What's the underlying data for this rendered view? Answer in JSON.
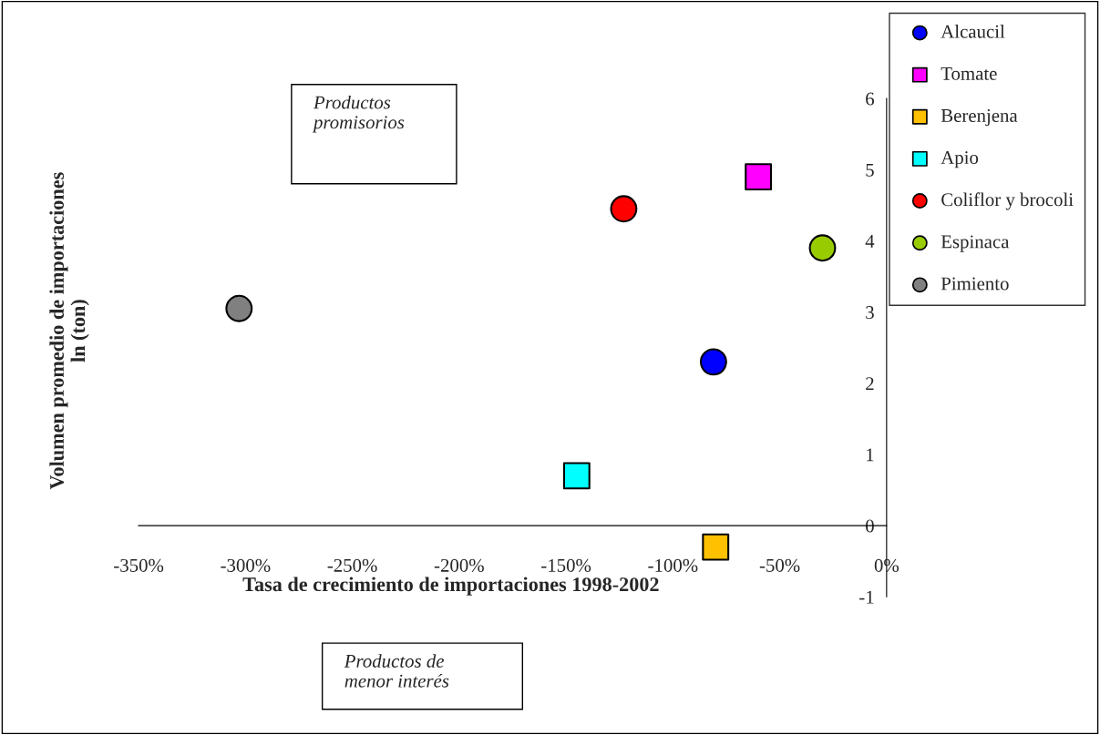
{
  "chart_data": {
    "type": "scatter",
    "xlabel": "Tasa de crecimiento de importaciones 1998-2002",
    "ylabel": "Volumen promedio de importaciones\nln (ton)",
    "xlim": [
      -350,
      0
    ],
    "xticks": [
      {
        "value": -350,
        "label": "-350%"
      },
      {
        "value": -300,
        "label": "-300%"
      },
      {
        "value": -250,
        "label": "-250%"
      },
      {
        "value": -200,
        "label": "-200%"
      },
      {
        "value": -150,
        "label": "-150%"
      },
      {
        "value": -100,
        "label": "-100%"
      },
      {
        "value": -50,
        "label": "-50%"
      },
      {
        "value": 0,
        "label": "0%"
      }
    ],
    "ylim": [
      -1,
      6
    ],
    "yticks": [
      -1,
      0,
      1,
      2,
      3,
      4,
      5,
      6
    ],
    "legend": "top right",
    "series": [
      {
        "name": "Alcaucil",
        "color": "#0000ff",
        "marker": "circle",
        "x": [
          -81
        ],
        "values": [
          2.3
        ]
      },
      {
        "name": "Tomate",
        "color": "#ff00ff",
        "marker": "square",
        "x": [
          -60
        ],
        "values": [
          4.9
        ]
      },
      {
        "name": "Berenjena",
        "color": "#ffc000",
        "marker": "square",
        "x": [
          -80
        ],
        "values": [
          -0.3
        ]
      },
      {
        "name": "Apio",
        "color": "#00ffff",
        "marker": "square",
        "x": [
          -145
        ],
        "values": [
          0.7
        ]
      },
      {
        "name": "Coliflor y brocoli",
        "color": "#ff0000",
        "marker": "circle",
        "x": [
          -123
        ],
        "values": [
          4.45
        ]
      },
      {
        "name": "Espinaca",
        "color": "#99cc00",
        "marker": "circle",
        "x": [
          -30
        ],
        "values": [
          3.9
        ]
      },
      {
        "name": "Pimiento",
        "color": "#808080",
        "marker": "circle",
        "x": [
          -303
        ],
        "values": [
          3.05
        ]
      }
    ],
    "annotations": [
      "Productos\npromisorios",
      "Productos de\nmenor interés"
    ]
  }
}
